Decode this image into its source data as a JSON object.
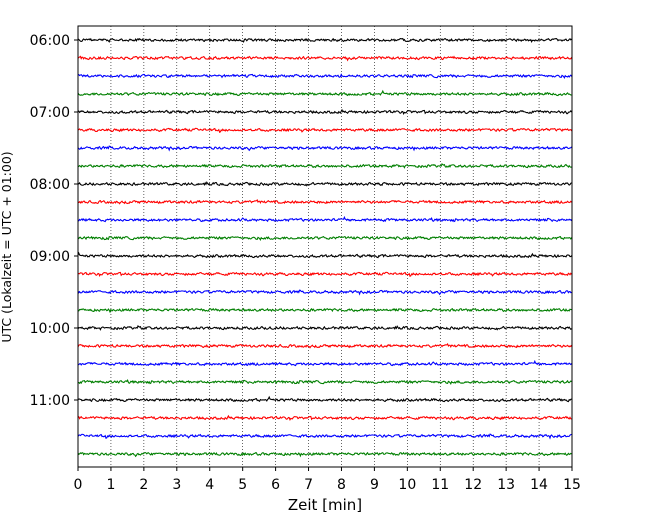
{
  "chart_data": {
    "type": "line",
    "title": "",
    "xlabel": "Zeit  [min]",
    "ylabel": "UTC (Lokalzeit = UTC + 01:00)",
    "xlim": [
      0,
      15
    ],
    "x_ticks": [
      0,
      1,
      2,
      3,
      4,
      5,
      6,
      7,
      8,
      9,
      10,
      11,
      12,
      13,
      14,
      15
    ],
    "y_tick_labels": [
      "06:00",
      "07:00",
      "08:00",
      "09:00",
      "10:00",
      "11:00"
    ],
    "trace_interval_min": 15,
    "trace_count": 24,
    "first_trace": "06:00",
    "trace_colors": [
      "#000000",
      "#ff0000",
      "#0000ff",
      "#007f00"
    ],
    "grid": {
      "x": true,
      "y": false,
      "style": "dotted"
    },
    "legend": "none"
  }
}
